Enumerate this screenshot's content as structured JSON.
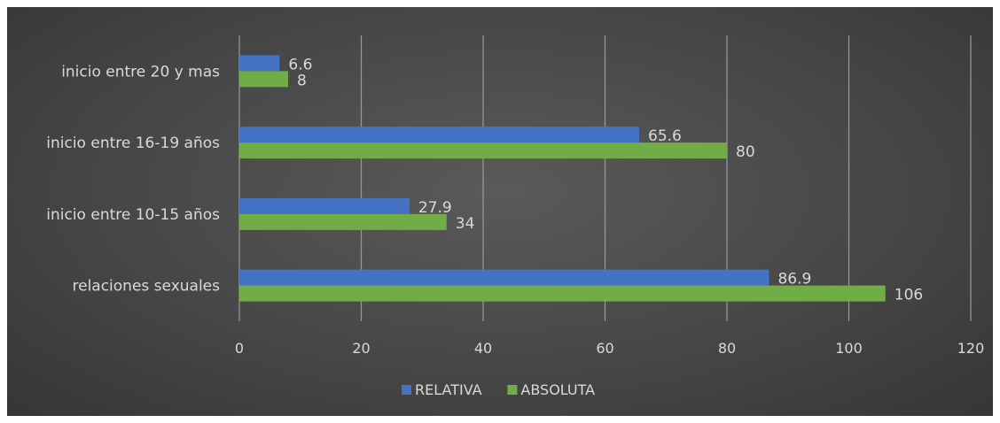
{
  "chart_data": {
    "type": "bar",
    "orientation": "horizontal",
    "categories": [
      "relaciones sexuales",
      "inicio entre 10-15 años",
      "inicio entre 16-19 años",
      "inicio entre  20 y mas"
    ],
    "series": [
      {
        "name": "RELATIVA",
        "values": [
          86.9,
          27.9,
          65.6,
          6.6
        ],
        "color": "#4472c4"
      },
      {
        "name": "ABSOLUTA",
        "values": [
          106,
          34,
          80,
          8
        ],
        "color": "#70ad47"
      }
    ],
    "x_ticks": [
      0,
      20,
      40,
      60,
      80,
      100,
      120
    ],
    "xlim": [
      0,
      120
    ],
    "grid": true,
    "legend_position": "bottom",
    "background": "#474747"
  }
}
